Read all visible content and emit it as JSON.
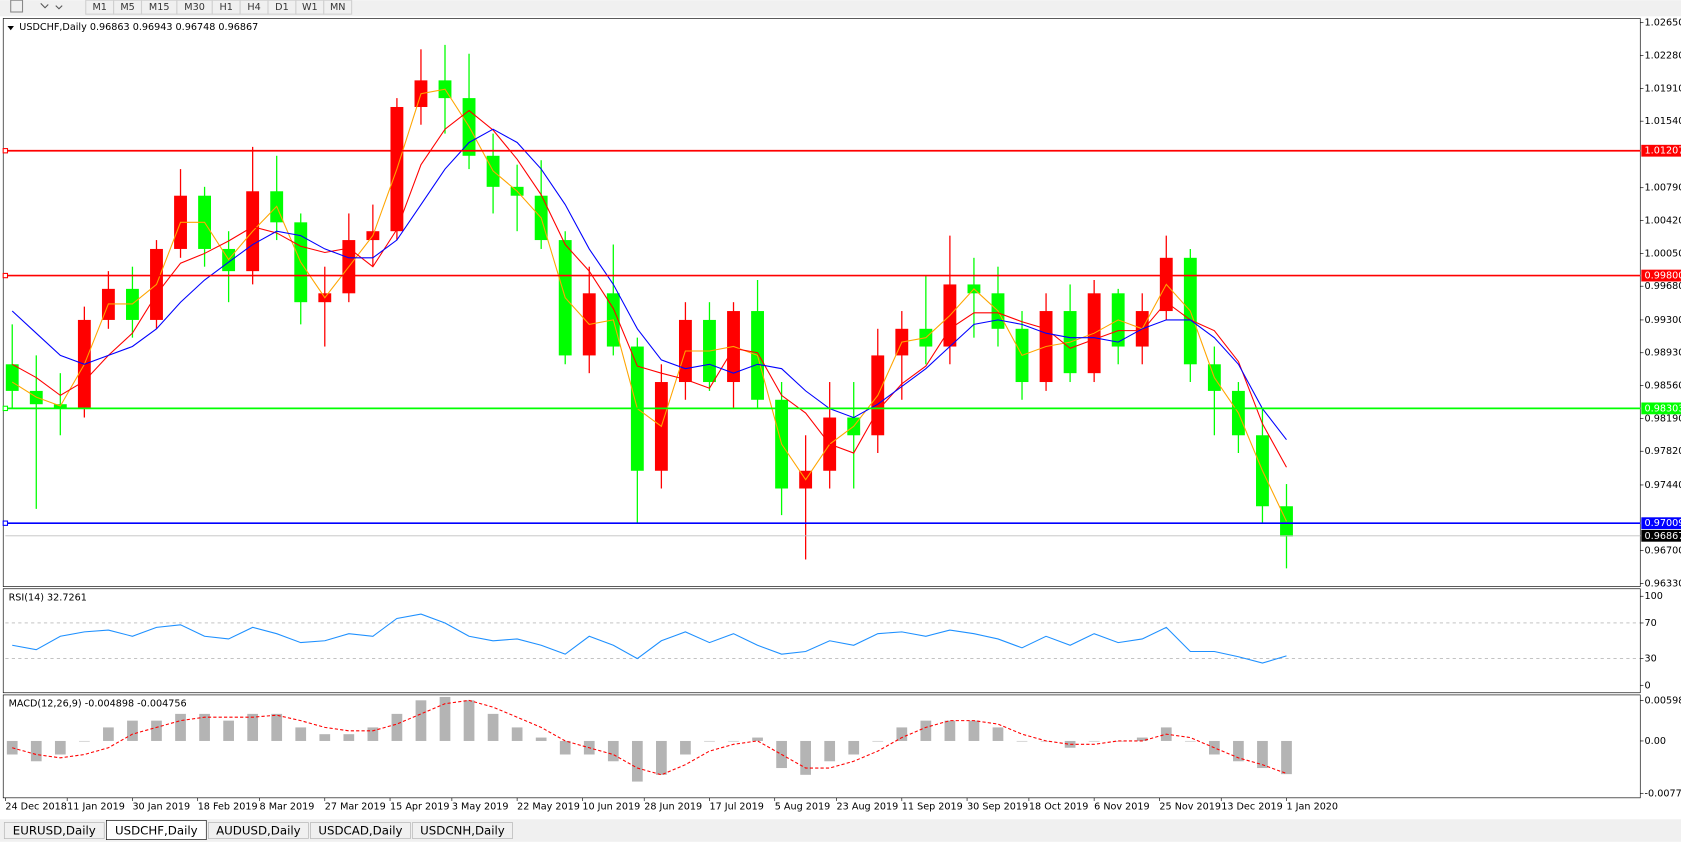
{
  "toolbar": [
    "M1",
    "M5",
    "M15",
    "M30",
    "H1",
    "H4",
    "D1",
    "W1",
    "MN"
  ],
  "tabs": [
    "EURUSD,Daily",
    "USDCHF,Daily",
    "AUDUSD,Daily",
    "USDCAD,Daily",
    "USDCNH,Daily"
  ],
  "active_tab": 1,
  "chart_data": [
    {
      "type": "candlestick",
      "title": "USDCHF,Daily  0.96863 0.96943 0.96748 0.96867",
      "up_color": "#ff0000",
      "down_color": "#00ff00",
      "x": [
        "2018-12-24",
        "2018-12-31",
        "2019-01-07",
        "2019-01-14",
        "2019-01-21",
        "2019-01-28",
        "2019-02-04",
        "2019-02-11",
        "2019-02-18",
        "2019-02-25",
        "2019-03-04",
        "2019-03-11",
        "2019-03-18",
        "2019-03-25",
        "2019-04-01",
        "2019-04-08",
        "2019-04-15",
        "2019-04-22",
        "2019-04-29",
        "2019-05-06",
        "2019-05-13",
        "2019-05-20",
        "2019-05-27",
        "2019-06-03",
        "2019-06-10",
        "2019-06-17",
        "2019-06-24",
        "2019-07-01",
        "2019-07-08",
        "2019-07-15",
        "2019-07-22",
        "2019-07-29",
        "2019-08-05",
        "2019-08-12",
        "2019-08-19",
        "2019-08-26",
        "2019-09-02",
        "2019-09-09",
        "2019-09-16",
        "2019-09-23",
        "2019-09-30",
        "2019-10-07",
        "2019-10-14",
        "2019-10-21",
        "2019-10-28",
        "2019-11-04",
        "2019-11-11",
        "2019-11-18",
        "2019-11-25",
        "2019-12-02",
        "2019-12-09",
        "2019-12-16",
        "2019-12-23",
        "2019-12-30"
      ],
      "open": [
        0.988,
        0.985,
        0.9835,
        0.983,
        0.993,
        0.9965,
        0.993,
        1.001,
        1.007,
        1.001,
        0.9985,
        1.0075,
        1.004,
        0.995,
        0.996,
        1.002,
        1.003,
        1.017,
        1.02,
        1.018,
        1.0115,
        1.008,
        1.007,
        1.002,
        0.989,
        0.996,
        0.99,
        0.976,
        0.986,
        0.993,
        0.986,
        0.994,
        0.984,
        0.974,
        0.976,
        0.982,
        0.98,
        0.989,
        0.992,
        0.99,
        0.997,
        0.996,
        0.992,
        0.986,
        0.994,
        0.987,
        0.996,
        0.99,
        0.994,
        1.0,
        0.988,
        0.985,
        0.98,
        0.972
      ],
      "high": [
        0.9925,
        0.989,
        0.987,
        0.9945,
        0.9985,
        0.999,
        1.002,
        1.01,
        1.008,
        1.003,
        1.0125,
        1.0115,
        1.005,
        0.999,
        1.005,
        1.006,
        1.018,
        1.0235,
        1.024,
        1.023,
        1.014,
        1.0105,
        1.011,
        1.003,
        0.999,
        1.0015,
        0.991,
        0.988,
        0.995,
        0.995,
        0.995,
        0.9975,
        0.986,
        0.98,
        0.986,
        0.986,
        0.992,
        0.994,
        0.998,
        1.0025,
        1.0,
        0.999,
        0.994,
        0.996,
        0.997,
        0.9975,
        0.9965,
        0.996,
        1.0025,
        1.001,
        0.99,
        0.986,
        0.983,
        0.9745
      ],
      "low": [
        0.983,
        0.9717,
        0.98,
        0.982,
        0.992,
        0.991,
        0.992,
        1.0,
        0.999,
        0.995,
        0.997,
        1.002,
        0.9925,
        0.99,
        0.995,
        0.999,
        1.002,
        1.015,
        1.014,
        1.01,
        1.005,
        1.003,
        1.001,
        0.988,
        0.987,
        0.989,
        0.97,
        0.974,
        0.984,
        0.985,
        0.983,
        0.983,
        0.971,
        0.966,
        0.974,
        0.974,
        0.978,
        0.984,
        0.988,
        0.988,
        0.991,
        0.99,
        0.984,
        0.985,
        0.986,
        0.986,
        0.988,
        0.988,
        0.993,
        0.986,
        0.98,
        0.978,
        0.97,
        0.965
      ],
      "close": [
        0.985,
        0.9835,
        0.983,
        0.993,
        0.9965,
        0.993,
        1.001,
        1.007,
        1.001,
        0.9985,
        1.0075,
        1.004,
        0.995,
        0.996,
        1.002,
        1.003,
        1.017,
        1.02,
        1.018,
        1.0115,
        1.008,
        1.007,
        1.002,
        0.989,
        0.996,
        0.99,
        0.976,
        0.986,
        0.993,
        0.986,
        0.994,
        0.984,
        0.974,
        0.976,
        0.982,
        0.98,
        0.989,
        0.992,
        0.99,
        0.997,
        0.996,
        0.992,
        0.986,
        0.994,
        0.987,
        0.996,
        0.99,
        0.994,
        1.0,
        0.988,
        0.985,
        0.98,
        0.972,
        0.9686
      ],
      "series": [
        {
          "color": "#ffa500",
          "values": [
            0.986,
            0.9843,
            0.9833,
            0.988,
            0.9948,
            0.9948,
            0.997,
            1.004,
            1.004,
            0.9998,
            1.003,
            1.0058,
            0.9995,
            0.9955,
            0.999,
            1.0025,
            1.01,
            1.0185,
            1.019,
            1.0148,
            1.0098,
            1.0075,
            1.0045,
            0.9955,
            0.9925,
            0.993,
            0.983,
            0.981,
            0.9895,
            0.9895,
            0.99,
            0.989,
            0.979,
            0.975,
            0.979,
            0.981,
            0.9845,
            0.9905,
            0.991,
            0.9935,
            0.9965,
            0.994,
            0.989,
            0.99,
            0.9905,
            0.9915,
            0.993,
            0.992,
            0.997,
            0.994,
            0.9865,
            0.9825,
            0.976,
            0.9703
          ]
        },
        {
          "color": "#ff0000",
          "values": [
            0.988,
            0.9865,
            0.9845,
            0.9861,
            0.989,
            0.9915,
            0.9959,
            0.9994,
            1.0005,
            1.0019,
            1.0035,
            1.0028,
            1.0013,
            1.0006,
            1.0011,
            0.999,
            1.0032,
            1.0105,
            1.0145,
            1.0166,
            1.0144,
            1.0111,
            1.0071,
            1.0015,
            0.9985,
            0.9943,
            0.9878,
            0.987,
            0.9863,
            0.9853,
            0.9898,
            0.9893,
            0.9845,
            0.9825,
            0.979,
            0.978,
            0.9828,
            0.9858,
            0.9878,
            0.992,
            0.9938,
            0.9938,
            0.9928,
            0.992,
            0.9898,
            0.9908,
            0.9918,
            0.9918,
            0.995,
            0.993,
            0.9918,
            0.9883,
            0.9813,
            0.9764
          ]
        },
        {
          "color": "#0000ff",
          "values": [
            0.994,
            0.9915,
            0.989,
            0.988,
            0.989,
            0.99,
            0.992,
            0.995,
            0.9975,
            0.9995,
            1.0015,
            1.003,
            1.0025,
            1.001,
            1.0,
            1.0,
            1.002,
            1.006,
            1.01,
            1.013,
            1.0145,
            1.013,
            1.01,
            1.006,
            1.001,
            0.997,
            0.992,
            0.9885,
            0.9875,
            0.988,
            0.987,
            0.988,
            0.9875,
            0.985,
            0.983,
            0.982,
            0.9835,
            0.9855,
            0.9875,
            0.99,
            0.9925,
            0.993,
            0.9925,
            0.9915,
            0.991,
            0.991,
            0.9905,
            0.992,
            0.993,
            0.993,
            0.991,
            0.988,
            0.983,
            0.9795
          ]
        }
      ],
      "levels": [
        {
          "value": 1.01207,
          "color": "#ff0000"
        },
        {
          "value": 0.998,
          "label": "0.99800",
          "color": "#ff0000"
        },
        {
          "value": 0.98303,
          "color": "#00ff00"
        },
        {
          "value": 0.97009,
          "color": "#0000ff"
        }
      ],
      "last_price": 0.96867,
      "xlim": [
        "2018-12-24",
        "2020-04-13"
      ],
      "xticks": [
        {
          "value": "2018-12-24",
          "label": "24 Dec 2018"
        },
        {
          "value": "2019-01-11",
          "label": "11 Jan 2019"
        },
        {
          "value": "2019-01-30",
          "label": "30 Jan 2019"
        },
        {
          "value": "2019-02-18",
          "label": "18 Feb 2019"
        },
        {
          "value": "2019-03-08",
          "label": "8 Mar 2019"
        },
        {
          "value": "2019-03-27",
          "label": "27 Mar 2019"
        },
        {
          "value": "2019-04-15",
          "label": "15 Apr 2019"
        },
        {
          "value": "2019-05-03",
          "label": "3 May 2019"
        },
        {
          "value": "2019-05-22",
          "label": "22 May 2019"
        },
        {
          "value": "2019-06-10",
          "label": "10 Jun 2019"
        },
        {
          "value": "2019-06-28",
          "label": "28 Jun 2019"
        },
        {
          "value": "2019-07-17",
          "label": "17 Jul 2019"
        },
        {
          "value": "2019-08-05",
          "label": "5 Aug 2019"
        },
        {
          "value": "2019-08-23",
          "label": "23 Aug 2019"
        },
        {
          "value": "2019-09-11",
          "label": "11 Sep 2019"
        },
        {
          "value": "2019-09-30",
          "label": "30 Sep 2019"
        },
        {
          "value": "2019-10-18",
          "label": "18 Oct 2019"
        },
        {
          "value": "2019-11-06",
          "label": "6 Nov 2019"
        },
        {
          "value": "2019-11-25",
          "label": "25 Nov 2019"
        },
        {
          "value": "2019-12-13",
          "label": "13 Dec 2019"
        },
        {
          "value": "2020-01-01",
          "label": "1 Jan 2020"
        }
      ],
      "ylim": [
        0.96294,
        1.02698
      ],
      "yticks": [
        {
          "value": 1.0265,
          "label": "1.02650"
        },
        {
          "value": 1.0228,
          "label": "1.02280"
        },
        {
          "value": 1.0191,
          "label": "1.01910"
        },
        {
          "value": 1.0154,
          "label": "1.01540"
        },
        {
          "value": 1.0079,
          "label": "1.00790"
        },
        {
          "value": 1.0042,
          "label": "1.00420"
        },
        {
          "value": 1.0005,
          "label": "1.00050"
        },
        {
          "value": 0.9968,
          "label": "0.99680"
        },
        {
          "value": 0.993,
          "label": "0.99300"
        },
        {
          "value": 0.9893,
          "label": "0.98930"
        },
        {
          "value": 0.9856,
          "label": "0.98560"
        },
        {
          "value": 0.9819,
          "label": "0.98190"
        },
        {
          "value": 0.9782,
          "label": "0.97820"
        },
        {
          "value": 0.9744,
          "label": "0.97440"
        },
        {
          "value": 0.967,
          "label": "0.96700"
        },
        {
          "value": 0.9633,
          "label": "0.96330"
        }
      ]
    },
    {
      "type": "line",
      "title": "RSI(14) 32.7261",
      "series": [
        {
          "color": "#1e90ff",
          "values": [
            45,
            40,
            55,
            60,
            62,
            55,
            65,
            68,
            55,
            52,
            65,
            58,
            48,
            50,
            58,
            55,
            75,
            80,
            70,
            55,
            50,
            52,
            45,
            35,
            55,
            45,
            30,
            50,
            60,
            48,
            58,
            45,
            35,
            38,
            50,
            45,
            58,
            60,
            55,
            62,
            58,
            52,
            42,
            55,
            45,
            58,
            48,
            52,
            65,
            38,
            38,
            32,
            25,
            33
          ]
        }
      ],
      "levels": [
        70,
        30
      ],
      "ylim": [
        -8.4,
        108.4
      ],
      "yticks": [
        100,
        70,
        30,
        0
      ]
    },
    {
      "type": "macd",
      "title": "MACD(12,26,9) -0.004898 -0.004756",
      "histogram": {
        "color": "#b4b4b4",
        "values": [
          -0.002,
          -0.003,
          -0.002,
          0,
          0.002,
          0.003,
          0.003,
          0.004,
          0.004,
          0.003,
          0.004,
          0.004,
          0.002,
          0.001,
          0.001,
          0.002,
          0.004,
          0.006,
          0.0065,
          0.006,
          0.004,
          0.002,
          0.0005,
          -0.002,
          -0.002,
          -0.003,
          -0.006,
          -0.005,
          -0.002,
          0,
          0,
          0.0005,
          -0.004,
          -0.005,
          -0.003,
          -0.002,
          0,
          0.002,
          0.003,
          0.003,
          0.003,
          0.002,
          0,
          0,
          -0.001,
          0,
          0,
          0.0005,
          0.002,
          0,
          -0.002,
          -0.003,
          -0.004,
          -0.0049
        ]
      },
      "signal": {
        "color": "#ff0000",
        "values": [
          -0.001,
          -0.002,
          -0.0025,
          -0.002,
          -0.001,
          0.001,
          0.002,
          0.003,
          0.0035,
          0.0035,
          0.0035,
          0.0038,
          0.003,
          0.002,
          0.0015,
          0.0015,
          0.0025,
          0.004,
          0.0055,
          0.006,
          0.005,
          0.0035,
          0.002,
          0,
          -0.001,
          -0.002,
          -0.004,
          -0.005,
          -0.0035,
          -0.0015,
          -0.0005,
          0,
          -0.002,
          -0.004,
          -0.004,
          -0.003,
          -0.0015,
          0.0005,
          0.002,
          0.003,
          0.003,
          0.0025,
          0.001,
          0,
          -0.0005,
          -0.0005,
          0,
          0,
          0.001,
          0.0005,
          -0.001,
          -0.0025,
          -0.0035,
          -0.0048
        ]
      },
      "ylim": [
        -0.0084,
        0.0068
      ],
      "yticks": [
        0.005986,
        {
          "value": 0,
          "label": "0.00"
        },
        -0.00773
      ]
    }
  ]
}
